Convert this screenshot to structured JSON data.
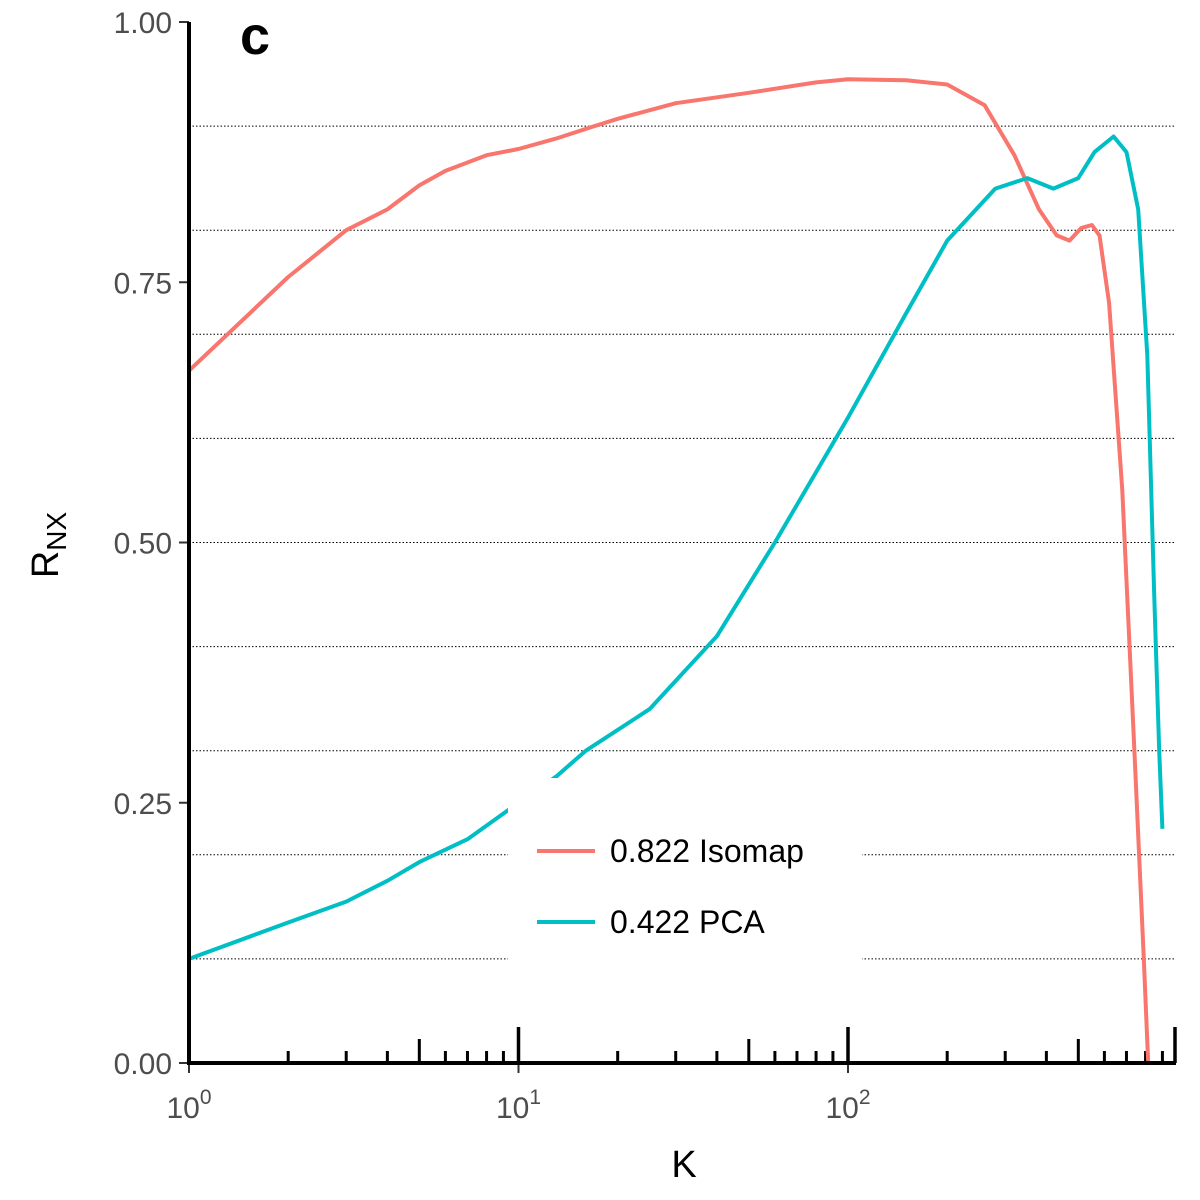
{
  "panel_label": "c",
  "chart_data": {
    "type": "line",
    "xlabel": "K",
    "ylabel_main": "R",
    "ylabel_sub": "NX",
    "xscale": "log",
    "xlim": [
      1,
      900
    ],
    "ylim": [
      0,
      1
    ],
    "yticks": [
      {
        "value": 0.0,
        "label": "0.00"
      },
      {
        "value": 0.25,
        "label": "0.25"
      },
      {
        "value": 0.5,
        "label": "0.50"
      },
      {
        "value": 0.75,
        "label": "0.75"
      },
      {
        "value": 1.0,
        "label": "1.00"
      }
    ],
    "xticks_major": [
      {
        "value": 1,
        "base": "10",
        "exp": "0"
      },
      {
        "value": 10,
        "base": "10",
        "exp": "1"
      },
      {
        "value": 100,
        "base": "10",
        "exp": "2"
      }
    ],
    "gridlines_y": [
      0.1,
      0.2,
      0.3,
      0.4,
      0.5,
      0.6,
      0.7,
      0.8,
      0.9
    ],
    "legend_position": "bottom-center",
    "series": [
      {
        "name": "0.822 Isomap",
        "color": "#F8766D",
        "points": [
          [
            1,
            0.665
          ],
          [
            2,
            0.755
          ],
          [
            3,
            0.8
          ],
          [
            4,
            0.82
          ],
          [
            5,
            0.843
          ],
          [
            6,
            0.857
          ],
          [
            7,
            0.865
          ],
          [
            8,
            0.872
          ],
          [
            10,
            0.878
          ],
          [
            13,
            0.888
          ],
          [
            17,
            0.9
          ],
          [
            20,
            0.907
          ],
          [
            30,
            0.922
          ],
          [
            50,
            0.932
          ],
          [
            80,
            0.942
          ],
          [
            100,
            0.945
          ],
          [
            150,
            0.944
          ],
          [
            200,
            0.94
          ],
          [
            260,
            0.92
          ],
          [
            320,
            0.872
          ],
          [
            380,
            0.82
          ],
          [
            430,
            0.795
          ],
          [
            470,
            0.79
          ],
          [
            510,
            0.802
          ],
          [
            550,
            0.805
          ],
          [
            580,
            0.795
          ],
          [
            620,
            0.73
          ],
          [
            680,
            0.55
          ],
          [
            740,
            0.3
          ],
          [
            790,
            0.1
          ],
          [
            815,
            0.0
          ]
        ]
      },
      {
        "name": "0.422 PCA",
        "color": "#00BFC4",
        "points": [
          [
            1,
            0.1
          ],
          [
            2,
            0.135
          ],
          [
            3,
            0.155
          ],
          [
            4,
            0.175
          ],
          [
            5,
            0.193
          ],
          [
            7,
            0.215
          ],
          [
            10,
            0.25
          ],
          [
            13,
            0.275
          ],
          [
            16,
            0.3
          ],
          [
            25,
            0.34
          ],
          [
            40,
            0.41
          ],
          [
            60,
            0.5
          ],
          [
            100,
            0.62
          ],
          [
            150,
            0.72
          ],
          [
            200,
            0.79
          ],
          [
            280,
            0.84
          ],
          [
            350,
            0.85
          ],
          [
            420,
            0.84
          ],
          [
            500,
            0.85
          ],
          [
            560,
            0.875
          ],
          [
            640,
            0.89
          ],
          [
            700,
            0.875
          ],
          [
            760,
            0.82
          ],
          [
            810,
            0.68
          ],
          [
            850,
            0.45
          ],
          [
            880,
            0.3
          ],
          [
            900,
            0.225
          ]
        ]
      }
    ]
  }
}
